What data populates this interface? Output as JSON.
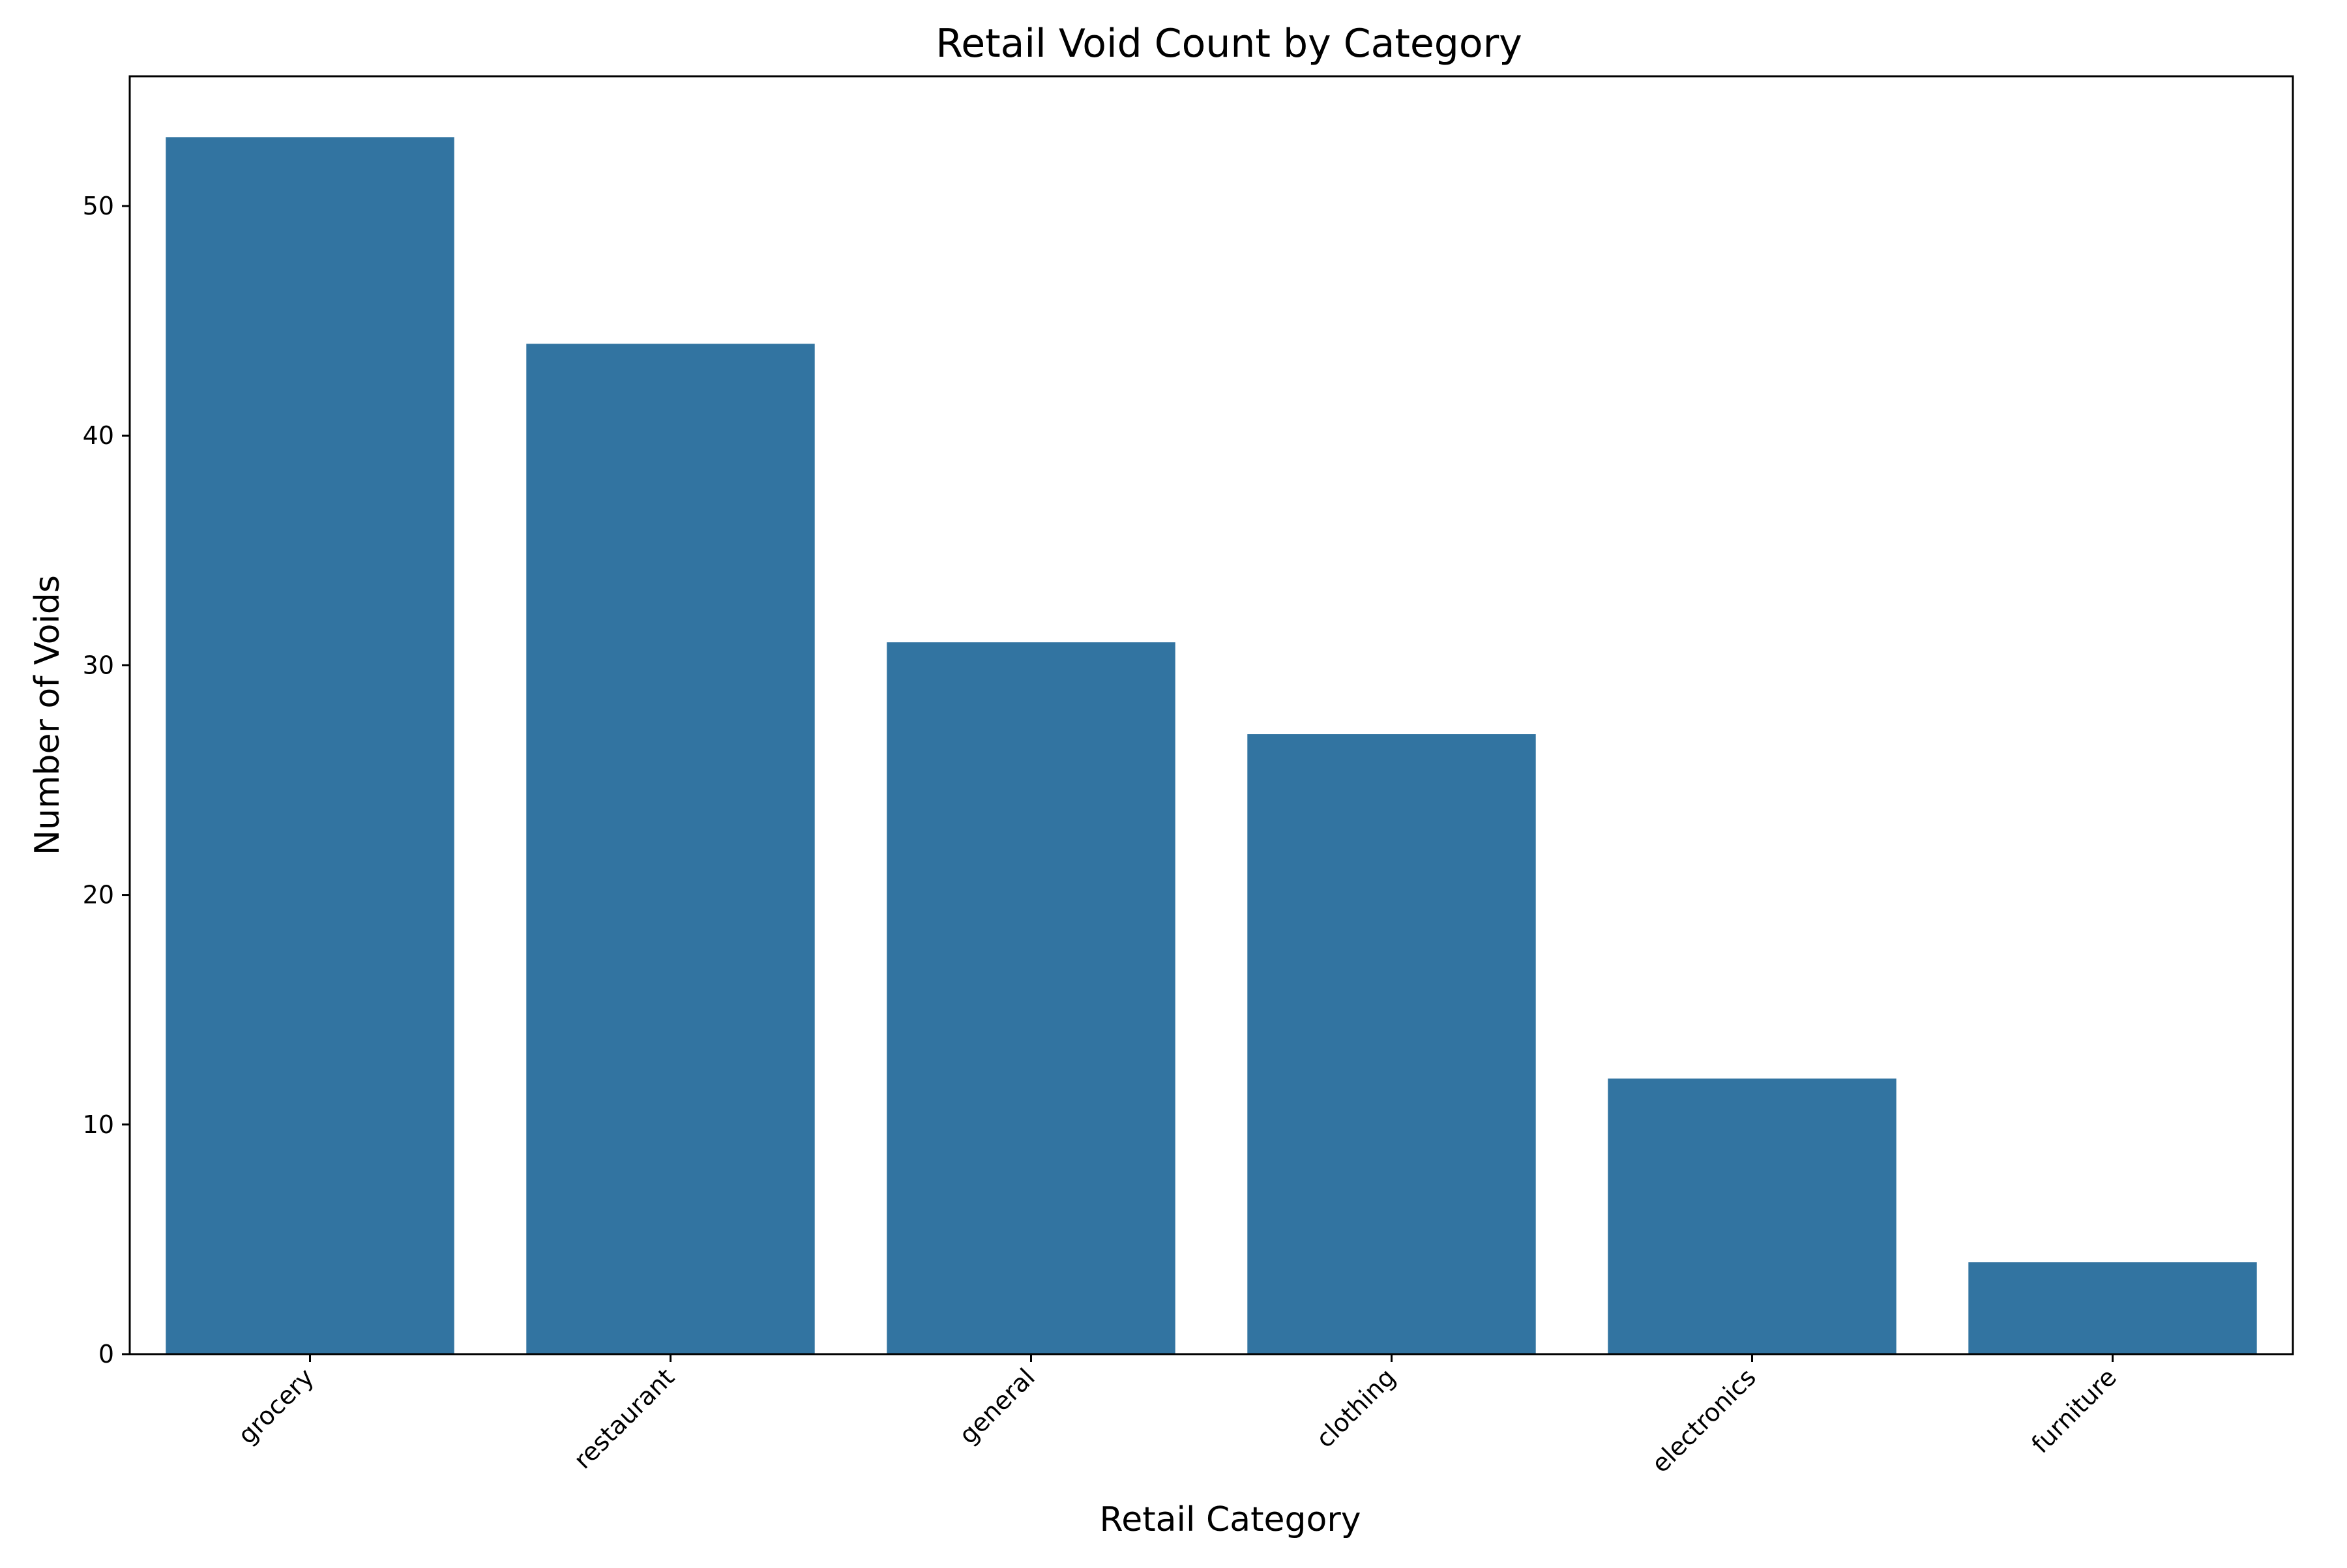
{
  "chart_data": {
    "type": "bar",
    "title": "Retail Void Count by Category",
    "xlabel": "Retail Category",
    "ylabel": "Number of Voids",
    "categories": [
      "grocery",
      "restaurant",
      "general",
      "clothing",
      "electronics",
      "furniture"
    ],
    "values": [
      53,
      44,
      31,
      27,
      12,
      4
    ],
    "ylim": [
      0,
      55.65
    ],
    "yticks": [
      0,
      10,
      20,
      30,
      40,
      50
    ],
    "bar_color": "#3274a1",
    "grid": false,
    "legend": "none"
  }
}
